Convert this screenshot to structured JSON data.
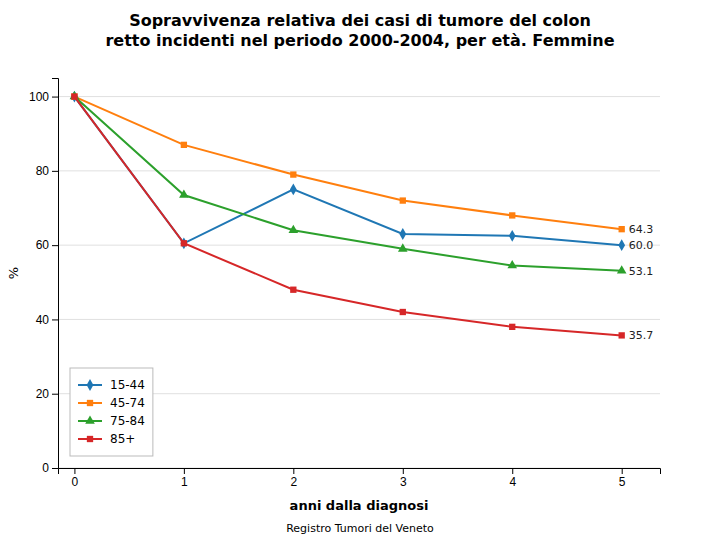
{
  "chart_data": {
    "type": "line",
    "title": "Sopravvivenza relativa dei casi di tumore del colon\nretto incidenti nel periodo 2000-2004, per età. Femmine",
    "subtitle": "Registro Tumori del Veneto",
    "xlabel": "anni dalla diagnosi",
    "ylabel": "%",
    "x": [
      0,
      1,
      2,
      3,
      4,
      5
    ],
    "series": [
      {
        "name": "15-44",
        "marker": "diamond",
        "values": [
          100,
          60.5,
          75.0,
          63.0,
          62.5,
          60.0
        ],
        "value_labels": [
          null,
          null,
          null,
          null,
          null,
          "60.0"
        ]
      },
      {
        "name": "45-74",
        "marker": "square",
        "values": [
          100,
          87.0,
          79.0,
          72.0,
          68.0,
          64.3
        ],
        "value_labels": [
          null,
          null,
          null,
          null,
          null,
          "64.3"
        ]
      },
      {
        "name": "75-84",
        "marker": "triangle",
        "values": [
          100,
          73.5,
          64.0,
          59.0,
          54.5,
          53.1
        ],
        "value_labels": [
          null,
          null,
          null,
          null,
          null,
          "53.1"
        ]
      },
      {
        "name": "85+",
        "marker": "square",
        "values": [
          100,
          60.5,
          48.0,
          42.0,
          38.0,
          35.7
        ],
        "value_labels": [
          null,
          null,
          null,
          null,
          null,
          "35.7"
        ]
      }
    ],
    "xlim": [
      -0.15,
      5.35
    ],
    "ylim": [
      0,
      105
    ],
    "xticks": [
      0,
      1,
      2,
      3,
      4,
      5
    ],
    "yticks": [
      0,
      20,
      40,
      60,
      80,
      100
    ],
    "grid": "y",
    "legend": "lower left",
    "data_labels": true
  }
}
